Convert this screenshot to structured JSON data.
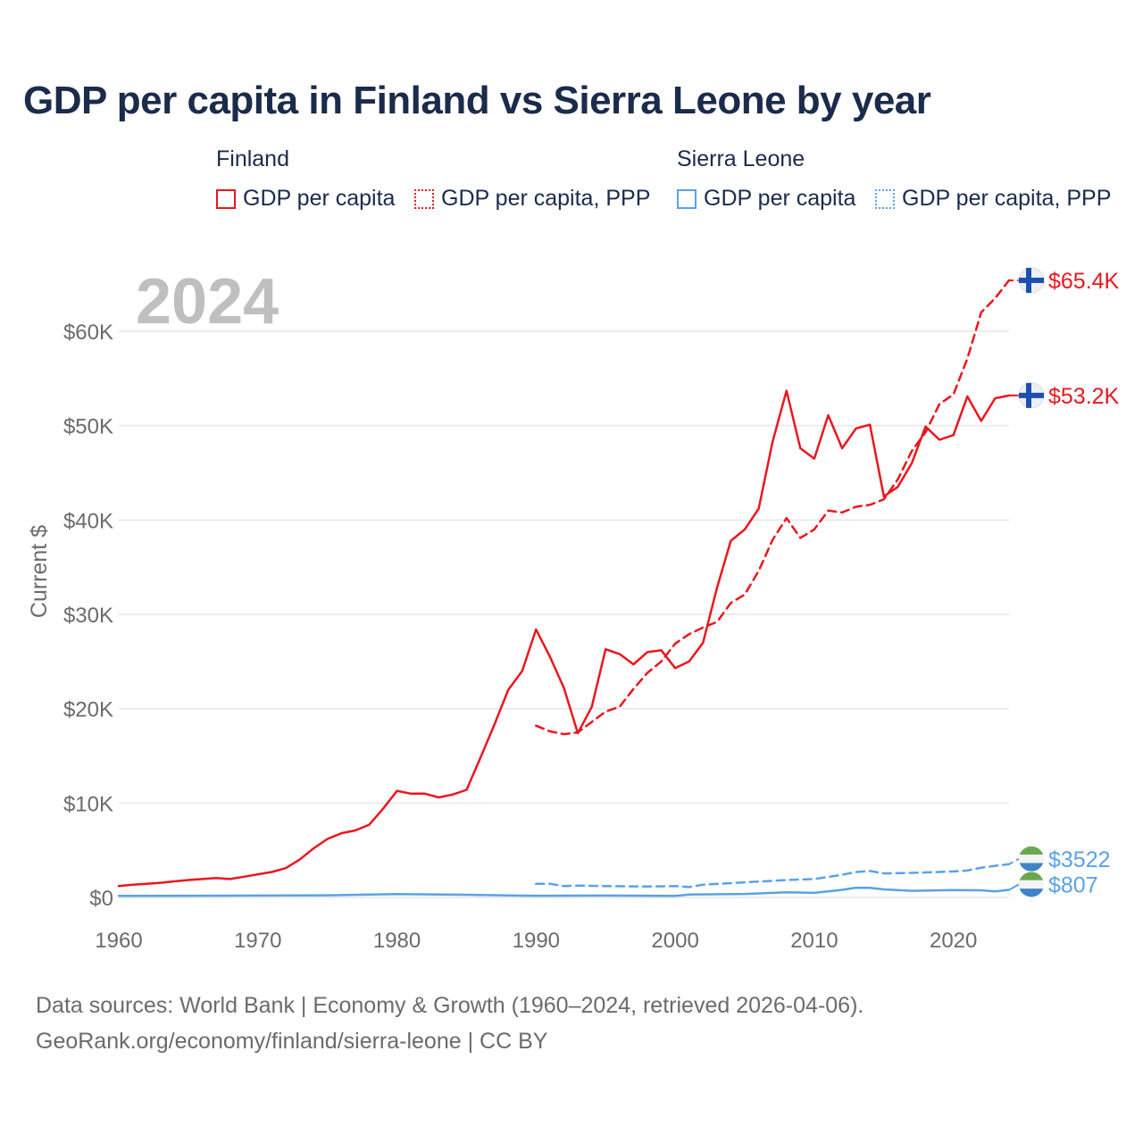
{
  "title": "GDP per capita in Finland vs Sierra Leone by year",
  "legend": {
    "finland": {
      "country": "Finland",
      "gdp": "GDP per capita",
      "ppp": "GDP per capita, PPP"
    },
    "sierra_leone": {
      "country": "Sierra Leone",
      "gdp": "GDP per capita",
      "ppp": "GDP per capita, PPP"
    }
  },
  "footer": {
    "line1": "Data sources: World Bank | Economy & Growth (1960–2024, retrieved 2026-04-06).",
    "line2": "GeoRank.org/economy/finland/sierra-leone | CC BY"
  },
  "colors": {
    "finland": "#e8171f",
    "sierra_leone": "#5aa2e6",
    "grid": "#e6e6e6",
    "axis_text": "#6b6b6b",
    "year_label": "#bfbfbf"
  },
  "chart_data": {
    "type": "line",
    "year_label": "2024",
    "ylabel": "Current $",
    "xlim": [
      1960,
      2024
    ],
    "ylim": [
      0,
      65400
    ],
    "x_ticks": [
      1960,
      1970,
      1980,
      1990,
      2000,
      2010,
      2020
    ],
    "y_ticks": [
      {
        "value": 0,
        "label": "$0"
      },
      {
        "value": 10000,
        "label": "$10K"
      },
      {
        "value": 20000,
        "label": "$20K"
      },
      {
        "value": 30000,
        "label": "$30K"
      },
      {
        "value": 40000,
        "label": "$40K"
      },
      {
        "value": 50000,
        "label": "$50K"
      },
      {
        "value": 60000,
        "label": "$60K"
      }
    ],
    "series": [
      {
        "name": "Finland GDP per capita",
        "country": "finland",
        "style": "solid",
        "end_label": "$53.2K",
        "x": [
          1960,
          1961,
          1962,
          1963,
          1964,
          1965,
          1966,
          1967,
          1968,
          1969,
          1970,
          1971,
          1972,
          1973,
          1974,
          1975,
          1976,
          1977,
          1978,
          1979,
          1980,
          1981,
          1982,
          1983,
          1984,
          1985,
          1986,
          1987,
          1988,
          1989,
          1990,
          1991,
          1992,
          1993,
          1994,
          1995,
          1996,
          1997,
          1998,
          1999,
          2000,
          2001,
          2002,
          2003,
          2004,
          2005,
          2006,
          2007,
          2008,
          2009,
          2010,
          2011,
          2012,
          2013,
          2014,
          2015,
          2016,
          2017,
          2018,
          2019,
          2020,
          2021,
          2022,
          2023,
          2024
        ],
        "values": [
          1200,
          1350,
          1450,
          1550,
          1700,
          1850,
          1950,
          2050,
          1950,
          2200,
          2450,
          2700,
          3100,
          4000,
          5200,
          6200,
          6800,
          7100,
          7700,
          9400,
          11300,
          11000,
          11000,
          10600,
          10900,
          11400,
          14800,
          18300,
          22000,
          24000,
          28400,
          25500,
          22200,
          17400,
          20200,
          26300,
          25800,
          24700,
          26000,
          26200,
          24300,
          25000,
          27000,
          32800,
          37800,
          39000,
          41200,
          48300,
          53700,
          47600,
          46500,
          51100,
          47600,
          49700,
          50100,
          42500,
          43500,
          46000,
          49900,
          48500,
          49000,
          53100,
          50500,
          52900,
          53200
        ]
      },
      {
        "name": "Finland GDP per capita, PPP",
        "country": "finland",
        "style": "dashed",
        "end_label": "$65.4K",
        "x": [
          1990,
          1991,
          1992,
          1993,
          1994,
          1995,
          1996,
          1997,
          1998,
          1999,
          2000,
          2001,
          2002,
          2003,
          2004,
          2005,
          2006,
          2007,
          2008,
          2009,
          2010,
          2011,
          2012,
          2013,
          2014,
          2015,
          2016,
          2017,
          2018,
          2019,
          2020,
          2021,
          2022,
          2023,
          2024
        ],
        "values": [
          18200,
          17600,
          17300,
          17500,
          18600,
          19700,
          20200,
          22100,
          23800,
          25000,
          26900,
          27900,
          28600,
          29200,
          31200,
          32100,
          34600,
          37900,
          40200,
          38100,
          39000,
          41000,
          40800,
          41400,
          41600,
          42200,
          44300,
          47300,
          49300,
          52300,
          53300,
          57100,
          62000,
          63500,
          65400
        ]
      },
      {
        "name": "Sierra Leone GDP per capita",
        "country": "sierra_leone",
        "style": "solid",
        "end_label": "$807",
        "x": [
          1960,
          1965,
          1970,
          1975,
          1980,
          1985,
          1988,
          1990,
          1995,
          2000,
          2001,
          2005,
          2008,
          2010,
          2012,
          2013,
          2014,
          2015,
          2017,
          2020,
          2022,
          2023,
          2024
        ],
        "values": [
          170,
          180,
          200,
          230,
          350,
          280,
          220,
          180,
          200,
          160,
          300,
          370,
          550,
          480,
          800,
          1030,
          1020,
          850,
          700,
          780,
          760,
          640,
          807
        ]
      },
      {
        "name": "Sierra Leone GDP per capita, PPP",
        "country": "sierra_leone",
        "style": "dashed",
        "end_label": "$3522",
        "x": [
          1990,
          1991,
          1992,
          1993,
          1995,
          1998,
          2000,
          2001,
          2002,
          2005,
          2008,
          2010,
          2012,
          2013,
          2014,
          2015,
          2017,
          2018,
          2020,
          2021,
          2022,
          2023,
          2024
        ],
        "values": [
          1450,
          1450,
          1200,
          1250,
          1200,
          1150,
          1200,
          1100,
          1350,
          1600,
          1850,
          1950,
          2400,
          2700,
          2800,
          2550,
          2600,
          2650,
          2750,
          2850,
          3150,
          3350,
          3522
        ]
      }
    ]
  }
}
